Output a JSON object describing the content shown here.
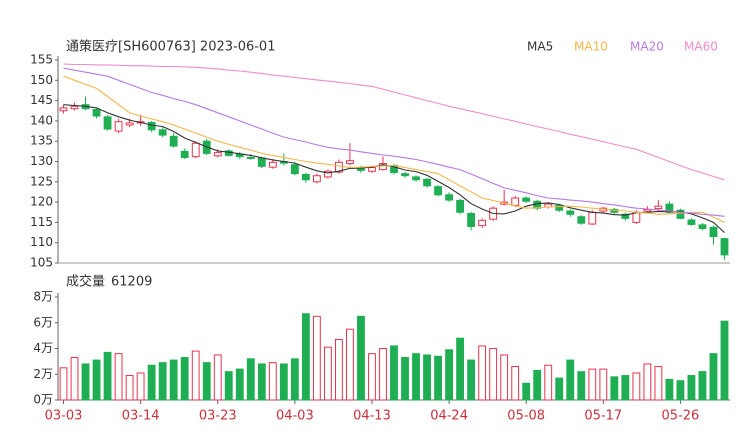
{
  "chart_data": [
    {
      "type": "candlestick",
      "title": "通策医疗[SH600763] 2023-06-01",
      "up_color": "#e8344e",
      "down_color": "#1fae53",
      "categories": [
        "03-03",
        null,
        null,
        null,
        null,
        null,
        null,
        "03-14",
        null,
        null,
        null,
        null,
        null,
        null,
        "03-23",
        null,
        null,
        null,
        null,
        null,
        null,
        "04-03",
        null,
        null,
        null,
        null,
        null,
        null,
        "04-13",
        null,
        null,
        null,
        null,
        null,
        null,
        "04-24",
        null,
        null,
        null,
        null,
        null,
        null,
        "05-08",
        null,
        null,
        null,
        null,
        null,
        null,
        "05-17",
        null,
        null,
        null,
        null,
        null,
        null,
        "05-26",
        null,
        null,
        null,
        null
      ],
      "ohlc": [
        [
          142.5,
          144,
          141.8,
          143.2
        ],
        [
          143,
          144.5,
          142.6,
          143.6
        ],
        [
          144,
          146,
          142.6,
          143
        ],
        [
          142.8,
          143.2,
          140.6,
          141.2
        ],
        [
          141,
          141.5,
          137.6,
          138
        ],
        [
          137.5,
          140.5,
          137,
          139.8
        ],
        [
          139,
          140.6,
          138.5,
          139.5
        ],
        [
          139.5,
          141.5,
          138.8,
          139.8
        ],
        [
          139.6,
          140,
          137.2,
          137.8
        ],
        [
          137.8,
          138.5,
          136,
          136.5
        ],
        [
          136.2,
          137,
          133.4,
          133.8
        ],
        [
          132.5,
          133.2,
          130.6,
          131
        ],
        [
          131.2,
          135,
          130.8,
          134.5
        ],
        [
          135,
          135.6,
          131.6,
          132
        ],
        [
          131.4,
          133,
          131,
          132.2
        ],
        [
          132.6,
          133,
          131.2,
          131.5
        ],
        [
          131.8,
          132.4,
          130.6,
          131.2
        ],
        [
          131,
          131.8,
          130.4,
          130.8
        ],
        [
          130.8,
          131.2,
          128.4,
          128.8
        ],
        [
          128.6,
          130.6,
          128.2,
          129.8
        ],
        [
          130,
          132,
          129,
          129.6
        ],
        [
          129.2,
          129.8,
          126.6,
          127
        ],
        [
          126.8,
          127.2,
          124.8,
          125.5
        ],
        [
          125,
          127,
          124.6,
          126.5
        ],
        [
          126.2,
          128,
          125.8,
          127.6
        ],
        [
          127.4,
          130.5,
          127,
          129.8
        ],
        [
          129.5,
          134.5,
          129,
          130.2
        ],
        [
          128.5,
          129,
          127.2,
          127.8
        ],
        [
          127.6,
          129,
          127.2,
          128.5
        ],
        [
          128,
          131.2,
          127.8,
          129.5
        ],
        [
          129,
          129.4,
          126.8,
          127.3
        ],
        [
          127,
          127.4,
          126,
          126.5
        ],
        [
          126.2,
          126.6,
          125,
          125.5
        ],
        [
          125.6,
          126,
          123.6,
          124
        ],
        [
          123.8,
          124.2,
          121.4,
          121.8
        ],
        [
          121.8,
          122.4,
          120,
          120.5
        ],
        [
          120.4,
          120.8,
          117,
          117.5
        ],
        [
          117.2,
          117.6,
          113,
          114
        ],
        [
          114.2,
          116,
          113.6,
          115.5
        ],
        [
          115.8,
          119,
          115.4,
          118.5
        ],
        [
          119.5,
          123,
          119.2,
          120
        ],
        [
          119.2,
          121.5,
          118.8,
          121
        ],
        [
          121,
          121.4,
          119.8,
          120.2
        ],
        [
          120.2,
          120.6,
          118,
          118.5
        ],
        [
          118.8,
          120,
          118.4,
          119.5
        ],
        [
          119.2,
          119.6,
          117.6,
          118
        ],
        [
          117.8,
          118.2,
          116.4,
          117
        ],
        [
          116.4,
          116.8,
          114.4,
          114.8
        ],
        [
          114.6,
          118,
          114.4,
          117.5
        ],
        [
          117.8,
          118.8,
          117.2,
          118.5
        ],
        [
          118.2,
          118.6,
          117,
          117.5
        ],
        [
          117,
          117.4,
          115.4,
          116
        ],
        [
          115,
          118,
          114.6,
          117.5
        ],
        [
          117.8,
          119,
          117.4,
          118.2
        ],
        [
          118.4,
          120.5,
          118,
          119
        ],
        [
          119.5,
          120.2,
          117.2,
          117.5
        ],
        [
          118,
          118.4,
          115.8,
          116
        ],
        [
          115.6,
          116,
          114.2,
          114.5
        ],
        [
          114.4,
          114.8,
          113,
          113.5
        ],
        [
          113.8,
          114.2,
          109.5,
          111.5
        ],
        [
          111,
          111.2,
          105.8,
          107
        ]
      ],
      "series": [
        {
          "name": "MA5",
          "color": "#333333",
          "values": [
            144,
            143.8,
            143.6,
            143.2,
            142,
            141,
            140.2,
            139.6,
            139,
            138.6,
            137.4,
            135.8,
            134.7,
            133.6,
            132.6,
            132.3,
            131.9,
            131.5,
            130.9,
            130.4,
            130,
            129.6,
            128.6,
            127.7,
            127.2,
            127.6,
            128.3,
            128.4,
            128.6,
            129.2,
            128.7,
            127.9,
            127.5,
            126.6,
            125.1,
            123.6,
            121.8,
            119.6,
            118.3,
            117.2,
            117.1,
            117.8,
            119,
            119.6,
            119.8,
            119.4,
            118.6,
            118,
            117.5,
            117.3,
            116.9,
            116.8,
            117.4,
            117.5,
            117.7,
            117.6,
            117.6,
            117.1,
            116.1,
            115,
            112.5
          ]
        },
        {
          "name": "MA10",
          "color": "#f5b74a",
          "values": [
            151,
            150,
            149,
            148,
            146,
            144,
            142,
            141.2,
            140.5,
            139.8,
            139,
            138,
            137,
            136,
            135,
            134.2,
            133.5,
            132.8,
            132,
            131.5,
            131,
            130.5,
            130,
            129.6,
            129.3,
            128.9,
            128.5,
            128.6,
            128.8,
            128.9,
            129,
            128.5,
            128,
            127.5,
            127,
            125.5,
            124,
            122.5,
            121,
            120.4,
            119.8,
            119.1,
            118.5,
            118.6,
            118.8,
            118.9,
            119,
            118.8,
            118.5,
            118.3,
            118,
            117.8,
            117.5,
            117.3,
            117,
            117.1,
            117.3,
            117.4,
            117.5,
            116.3,
            115
          ]
        },
        {
          "name": "MA20",
          "color": "#b67ae0",
          "values": [
            153,
            152.5,
            152,
            151.5,
            151,
            150,
            149,
            148,
            147,
            146.3,
            145.5,
            144.8,
            144,
            143,
            142,
            141,
            140,
            139,
            138,
            137,
            136,
            135.4,
            134.8,
            134.1,
            133.5,
            133.1,
            132.8,
            132.4,
            132,
            131.6,
            131.3,
            130.9,
            130.5,
            129.9,
            129.3,
            128.6,
            128,
            126.9,
            125.8,
            124.6,
            123.5,
            122.9,
            122.3,
            121.6,
            121,
            120.8,
            120.5,
            120.3,
            120,
            119.6,
            119.3,
            118.9,
            118.5,
            118.3,
            118,
            117.8,
            117.5,
            117.3,
            117,
            116.8,
            116.5
          ]
        },
        {
          "name": "MA60",
          "color": "#f08cc8",
          "values": [
            154,
            153.9,
            153.9,
            153.8,
            153.8,
            153.7,
            153.6,
            153.6,
            153.5,
            153.4,
            153.4,
            153.3,
            153.2,
            153,
            152.8,
            152.5,
            152.3,
            152,
            151.7,
            151.3,
            151,
            150.7,
            150.4,
            150.1,
            149.8,
            149.5,
            149.2,
            148.8,
            148.5,
            147.8,
            147.1,
            146.4,
            145.7,
            145,
            144.3,
            143.6,
            143,
            142.4,
            141.8,
            141.1,
            140.5,
            139.9,
            139.2,
            138.6,
            138,
            137.4,
            136.7,
            136.1,
            135.5,
            134.9,
            134.2,
            133.6,
            133,
            132,
            131,
            130,
            129,
            128,
            127.2,
            126.3,
            125.5
          ]
        }
      ],
      "ylim": [
        105,
        155
      ],
      "yticks": [
        155,
        150,
        145,
        140,
        135,
        130,
        125,
        120,
        115,
        110,
        105
      ]
    },
    {
      "type": "bar",
      "title": "成交量",
      "values": [
        25000,
        33000,
        28000,
        31000,
        37000,
        36000,
        19000,
        21000,
        27000,
        29000,
        31000,
        33000,
        38000,
        29000,
        35000,
        22000,
        24000,
        32000,
        28000,
        29000,
        28000,
        32000,
        67000,
        65000,
        41000,
        47000,
        55000,
        65000,
        36000,
        40000,
        42000,
        33000,
        36000,
        35000,
        34000,
        39000,
        48000,
        31000,
        42000,
        40000,
        35000,
        26000,
        13000,
        23000,
        27000,
        17000,
        31000,
        22000,
        24000,
        24000,
        18000,
        19000,
        21000,
        28000,
        26000,
        16000,
        15000,
        19000,
        22000,
        36000,
        61209
      ],
      "ylim": [
        0,
        80000
      ],
      "yticks": [
        {
          "value": 80000,
          "label": "8万"
        },
        {
          "value": 60000,
          "label": "6万"
        },
        {
          "value": 40000,
          "label": "4万"
        },
        {
          "value": 20000,
          "label": "2万"
        },
        {
          "value": 0,
          "label": "0万"
        }
      ]
    }
  ]
}
